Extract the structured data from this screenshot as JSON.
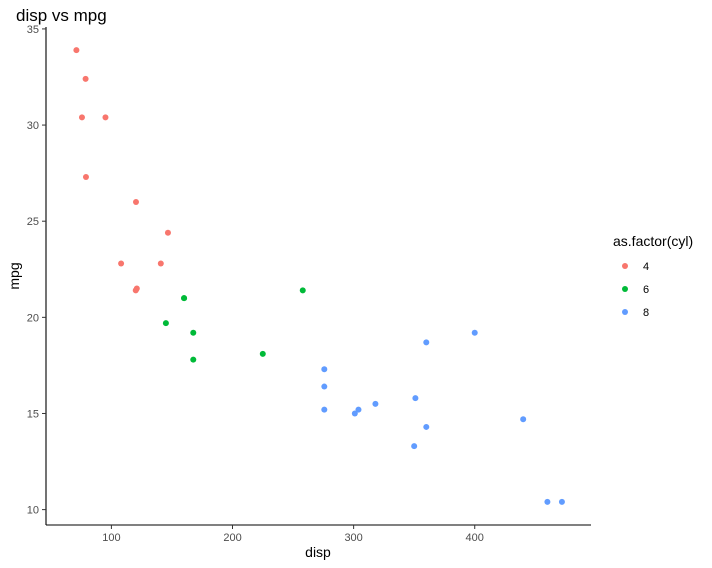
{
  "chart_data": {
    "type": "scatter",
    "title": "disp vs mpg",
    "xlabel": "disp",
    "ylabel": "mpg",
    "xlim": [
      46,
      496
    ],
    "ylim": [
      9.2,
      35.1
    ],
    "x_ticks": [
      100,
      200,
      300,
      400
    ],
    "y_ticks": [
      10,
      15,
      20,
      25,
      30,
      35
    ],
    "grid": false,
    "legend": {
      "title": "as.factor(cyl)",
      "position": "right"
    },
    "series": [
      {
        "name": "4",
        "color": "#F8766D",
        "points": [
          {
            "x": 71.1,
            "y": 33.9
          },
          {
            "x": 78.7,
            "y": 32.4
          },
          {
            "x": 75.7,
            "y": 30.4
          },
          {
            "x": 95.1,
            "y": 30.4
          },
          {
            "x": 79.0,
            "y": 27.3
          },
          {
            "x": 120.3,
            "y": 26.0
          },
          {
            "x": 146.7,
            "y": 24.4
          },
          {
            "x": 108.0,
            "y": 22.8
          },
          {
            "x": 140.8,
            "y": 22.8
          },
          {
            "x": 121.0,
            "y": 21.5
          },
          {
            "x": 120.1,
            "y": 21.4
          }
        ]
      },
      {
        "name": "6",
        "color": "#00BA38",
        "points": [
          {
            "x": 160.0,
            "y": 21.0
          },
          {
            "x": 160.0,
            "y": 21.0
          },
          {
            "x": 258.0,
            "y": 21.4
          },
          {
            "x": 145.0,
            "y": 19.7
          },
          {
            "x": 167.6,
            "y": 19.2
          },
          {
            "x": 225.0,
            "y": 18.1
          },
          {
            "x": 167.6,
            "y": 17.8
          }
        ]
      },
      {
        "name": "8",
        "color": "#619CFF",
        "points": [
          {
            "x": 400.0,
            "y": 19.2
          },
          {
            "x": 360.0,
            "y": 18.7
          },
          {
            "x": 275.8,
            "y": 17.3
          },
          {
            "x": 275.8,
            "y": 16.4
          },
          {
            "x": 351.0,
            "y": 15.8
          },
          {
            "x": 318.0,
            "y": 15.5
          },
          {
            "x": 275.8,
            "y": 15.2
          },
          {
            "x": 304.0,
            "y": 15.2
          },
          {
            "x": 301.0,
            "y": 15.0
          },
          {
            "x": 440.0,
            "y": 14.7
          },
          {
            "x": 360.0,
            "y": 14.3
          },
          {
            "x": 350.0,
            "y": 13.3
          },
          {
            "x": 472.0,
            "y": 10.4
          },
          {
            "x": 460.0,
            "y": 10.4
          }
        ]
      }
    ]
  }
}
